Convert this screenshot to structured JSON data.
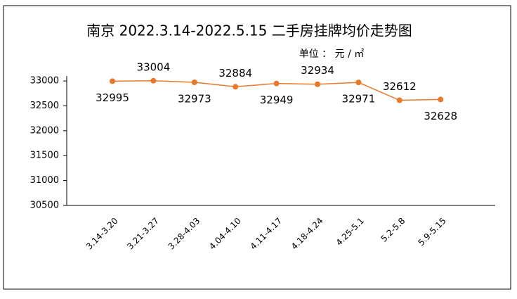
{
  "chart_data": {
    "type": "line",
    "title": "南京 2022.3.14-2022.5.15 二手房挂牌均价走势图",
    "subtitle": "单位 ： 元 / ㎡",
    "categories": [
      "3.14-3.20",
      "3.21-3.27",
      "3.28-4.03",
      "4.04-4.10",
      "4.11-4.17",
      "4.18-4.24",
      "4.25-5.1",
      "5.2-5.8",
      "5.9-5.15"
    ],
    "series": [
      {
        "name": "挂牌均价",
        "color": "#e8792b",
        "values": [
          32995,
          33004,
          32973,
          32884,
          32949,
          32934,
          32971,
          32612,
          32628
        ]
      }
    ],
    "ylim": [
      30500,
      33100
    ],
    "yticks": [
      30500,
      31000,
      31500,
      32000,
      32500,
      33000
    ]
  }
}
